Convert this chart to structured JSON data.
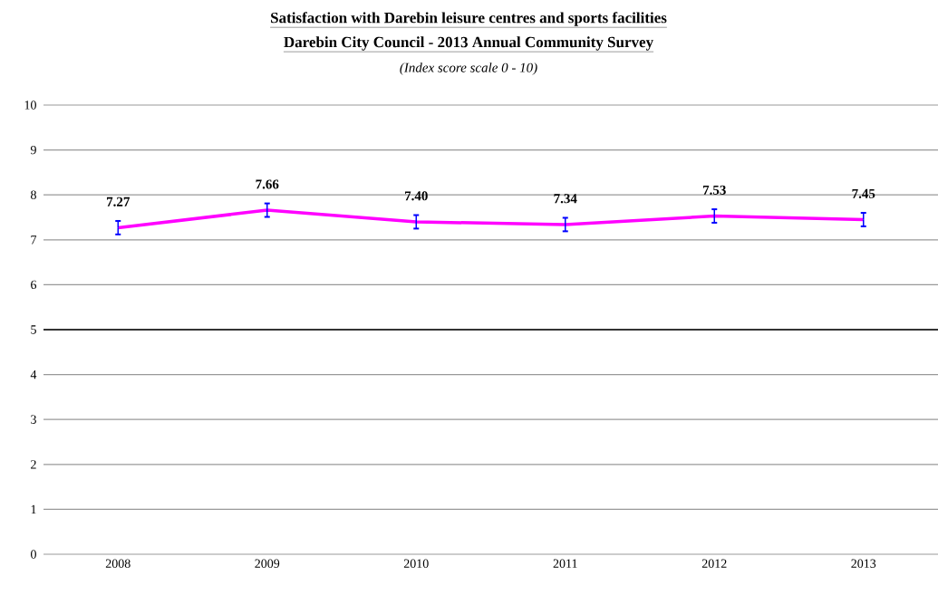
{
  "chart_data": {
    "type": "line",
    "title": "Satisfaction with Darebin leisure centres and sports facilities",
    "subtitle": "Darebin City Council - 2013 Annual Community Survey",
    "annotations": [
      "(Index score scale 0 - 10)"
    ],
    "categories": [
      "2008",
      "2009",
      "2010",
      "2011",
      "2012",
      "2013"
    ],
    "series": [
      {
        "color": "#ff00ff",
        "values": [
          7.27,
          7.66,
          7.4,
          7.34,
          7.53,
          7.45
        ],
        "errors": [
          0.15,
          0.15,
          0.15,
          0.15,
          0.15,
          0.15
        ],
        "value_labels": [
          "7.27",
          "7.66",
          "7.40",
          "7.34",
          "7.53",
          "7.45"
        ]
      }
    ],
    "ylim": [
      0,
      10
    ],
    "yticks": [
      0,
      1,
      2,
      3,
      4,
      5,
      6,
      7,
      8,
      9,
      10
    ],
    "grid": "y",
    "marker": "none",
    "line_style": "solid",
    "ref_lines": [
      {
        "axis": "y",
        "value": 5,
        "color": "#000000"
      }
    ]
  }
}
